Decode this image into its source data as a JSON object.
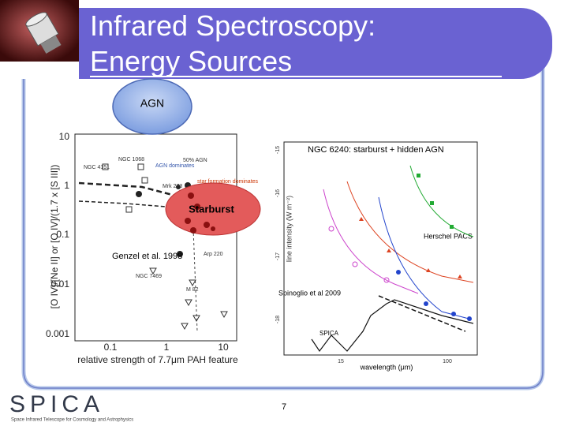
{
  "title": {
    "lines": [
      "Infrared Spectroscopy:",
      "Energy Sources"
    ]
  },
  "labels": {
    "agn": "AGN",
    "starburst": "Starburst",
    "genzel": "Genzel et al. 1998",
    "spinoglio": "Spinoglio et al 2009"
  },
  "left_figure": {
    "y_axis_label": "[O IV]/[Ne II] or [O IV]/(1.7 x [S III])",
    "x_axis_label": "relative strength of 7.7μm PAH feature",
    "y_ticks": [
      10,
      1,
      0.1,
      0.01,
      0.001
    ],
    "x_ticks": [
      0.1,
      1,
      10
    ],
    "annotations": [
      "NGC 1068",
      "NGC 4151",
      "50% AGN",
      "AGN dominates",
      "star formation dominates",
      "Mrk 273",
      "Arp 220",
      "M 82",
      "NGC 7469"
    ]
  },
  "right_figure": {
    "title": "NGC 6240: starburst + hidden AGN",
    "y_axis_label": "line intensity (W m⁻²)",
    "x_axis_label": "wavelength (μm)",
    "instrument_labels": [
      "Herschel PACS",
      "SPICA"
    ],
    "x_ticks": [
      15,
      100
    ],
    "y_ticks": [
      -15,
      -16,
      -17,
      -18
    ]
  },
  "footer": {
    "page_number": 7,
    "logo": "SPICA",
    "logo_subtitle": "Space Infrared Telescope for Cosmology and Astrophysics"
  }
}
